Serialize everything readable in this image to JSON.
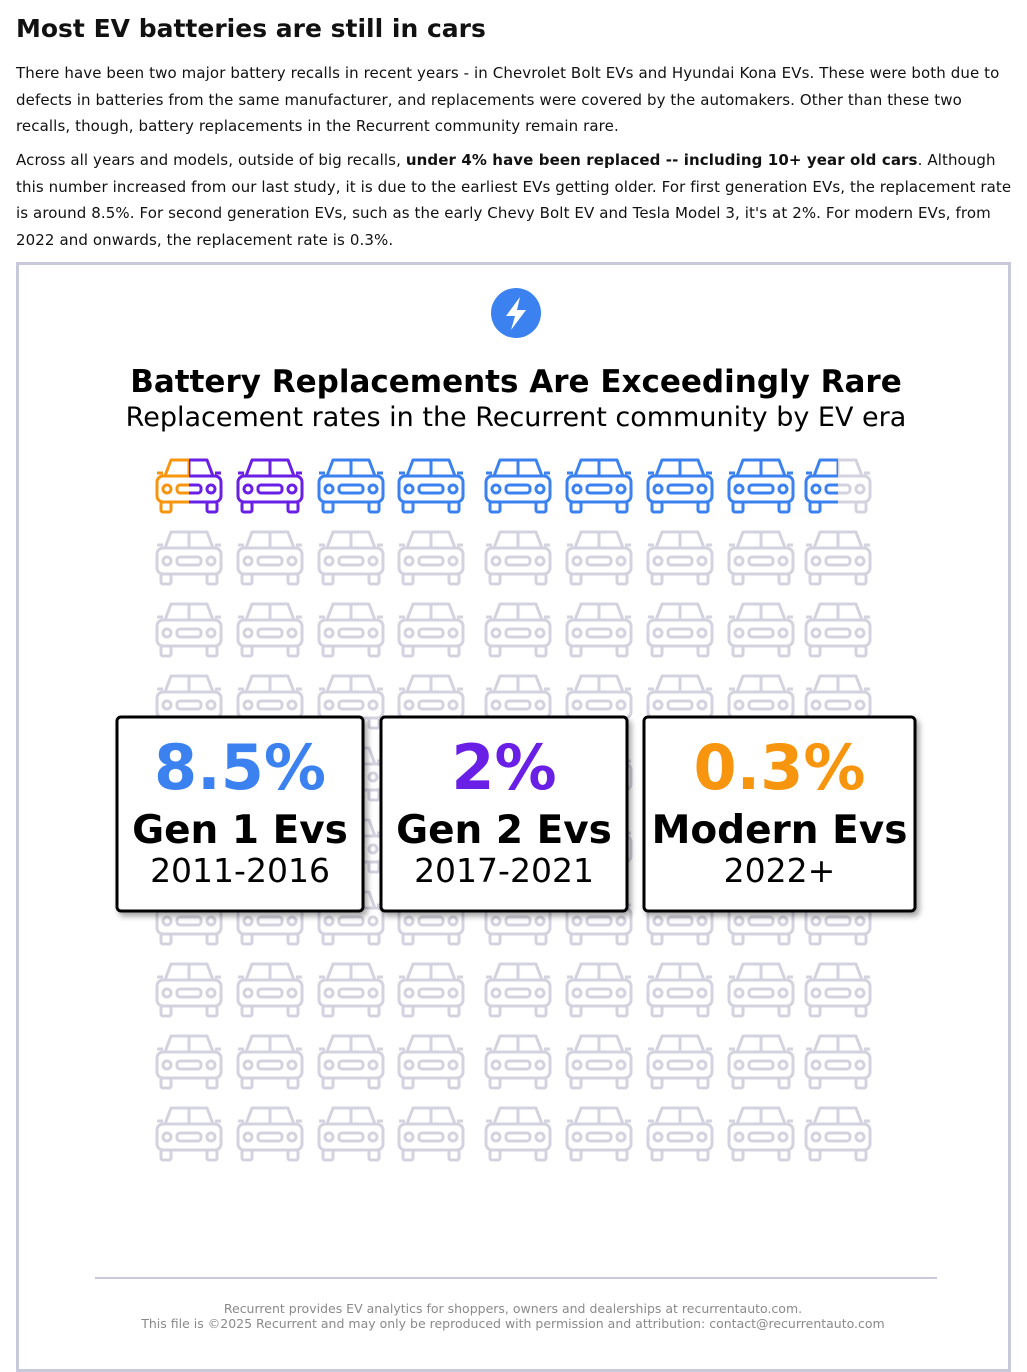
{
  "header": {
    "title": "Most EV batteries are still in cars"
  },
  "paragraphs": [
    {
      "text": "There have been two major battery recalls in recent years - in Chevrolet Bolt EVs and Hyundai Kona EVs. These were both due to defects in batteries from the same manufacturer, and replacements were covered by the automakers. Other than these two recalls, though, battery replacements in the Recurrent community remain rare."
    },
    {
      "before": "Across all years and models, outside of big recalls,",
      "bold": "under 4% have been replaced -- including 10+ year old cars",
      "after": ". Although this number increased from our last study, it is due to the earliest EVs getting older. For first generation EVs, the replacement rate is around 8.5%. For second generation EVs, such as the early Chevy Bolt EV and Tesla Model 3, it's at 2%. For modern EVs, from 2022 and onwards, the replacement rate is 0.3%."
    }
  ],
  "infographic": {
    "title": "Battery Replacements Are Exceedingly Rare",
    "subtitle": "Replacement rates in the Recurrent community by EV era",
    "stats": [
      {
        "value": "8.5%",
        "label": "Gen 1 Evs",
        "years": "2011-2016",
        "color": "#3b82f0"
      },
      {
        "value": "2%",
        "label": "Gen 2 Evs",
        "years": "2017-2021",
        "color": "#6a1fe6"
      },
      {
        "value": "0.3%",
        "label": "Modern Evs",
        "years": "2022+",
        "color": "#f7950f"
      }
    ],
    "footer": [
      "Recurrent provides EV analytics for shoppers, owners and dealerships at recurrentauto.com.",
      "This file is ©2025 Recurrent and may only be reproduced with permission and attribution: contact@recurrentauto.com"
    ]
  }
}
